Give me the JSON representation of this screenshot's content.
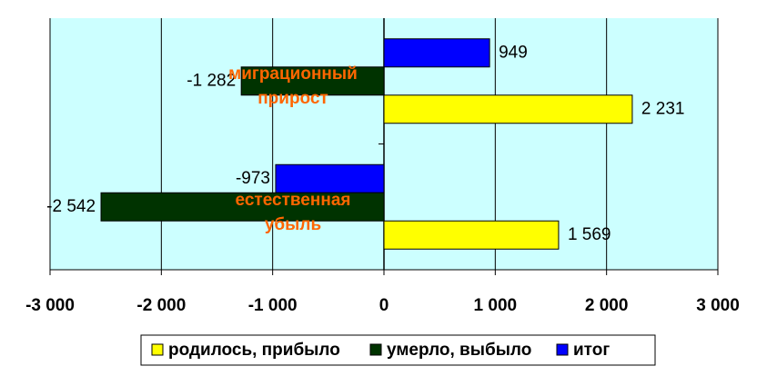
{
  "chart_data": {
    "type": "hbar",
    "categories": [
      "миграционный прирост",
      "естественная убыль"
    ],
    "series": [
      {
        "name": "родилось, прибыло",
        "color": "#ffff00",
        "values": [
          2231,
          1569
        ],
        "value_labels": [
          "2 231",
          "1 569"
        ]
      },
      {
        "name": "умерло, выбыло",
        "color": "#003300",
        "values": [
          -1282,
          -2542
        ],
        "value_labels": [
          "-1 282",
          "-2 542"
        ]
      },
      {
        "name": "итог",
        "color": "#0000ff",
        "values": [
          949,
          -973
        ],
        "value_labels": [
          "949",
          "-973"
        ]
      }
    ],
    "xlim": [
      -3000,
      3000
    ],
    "xticks": [
      {
        "value": -3000,
        "label": "-3 000"
      },
      {
        "value": -2000,
        "label": "-2 000"
      },
      {
        "value": -1000,
        "label": "-1 000"
      },
      0,
      {
        "value": 1000,
        "label": "1 000"
      },
      {
        "value": 2000,
        "label": "2 000"
      },
      {
        "value": 3000,
        "label": "3 000"
      }
    ],
    "grid": true,
    "background": "#ccffff",
    "label_color": "#ff6600",
    "legend": "bottom"
  }
}
